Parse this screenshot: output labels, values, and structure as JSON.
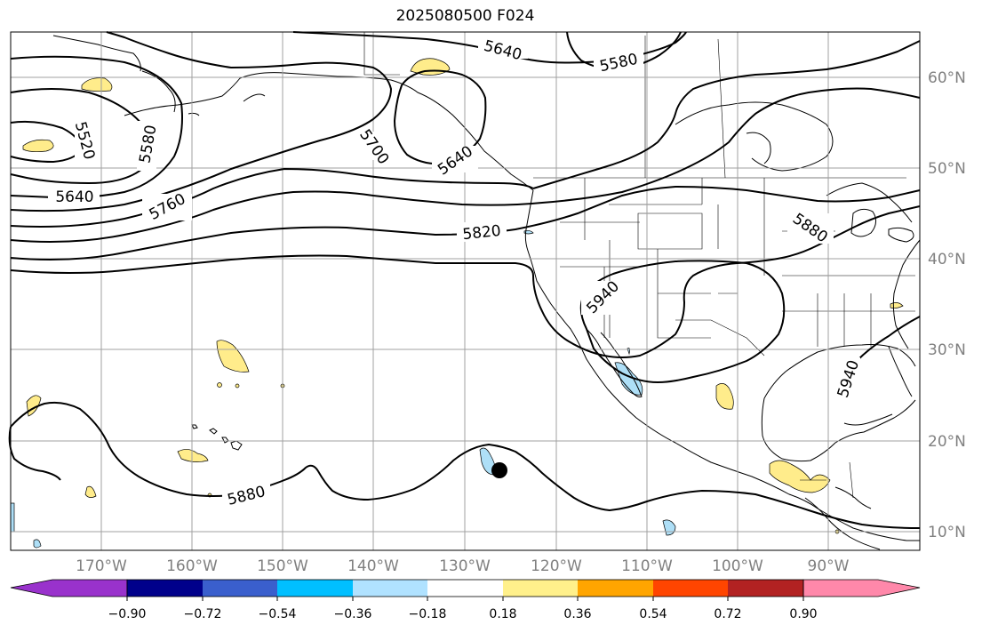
{
  "title": "2025080500 F024",
  "map": {
    "lat_labels": [
      "60°N",
      "50°N",
      "40°N",
      "30°N",
      "20°N",
      "10°N"
    ],
    "lon_labels": [
      "170°W",
      "160°W",
      "150°W",
      "140°W",
      "130°W",
      "120°W",
      "110°W",
      "100°W",
      "90°W"
    ],
    "contour_labels": [
      "5640",
      "5580",
      "5520",
      "5580",
      "5640",
      "5700",
      "5640",
      "5760",
      "5820",
      "5880",
      "5940",
      "5940",
      "5880"
    ],
    "colors": {
      "positive": "#ffec8b",
      "negative": "#aedff7",
      "contour": "#000000",
      "grid": "#a0a0a0"
    }
  },
  "colorbar": {
    "ticks": [
      "−0.90",
      "−0.72",
      "−0.54",
      "−0.36",
      "−0.18",
      "0.18",
      "0.36",
      "0.54",
      "0.72",
      "0.90"
    ],
    "colors": [
      "#9932cc",
      "#00008b",
      "#3a5fcd",
      "#00bfff",
      "#b0e2ff",
      "#ffffff",
      "#fff08b",
      "#ffa500",
      "#ff4500",
      "#b22222",
      "#ff88aa"
    ]
  }
}
